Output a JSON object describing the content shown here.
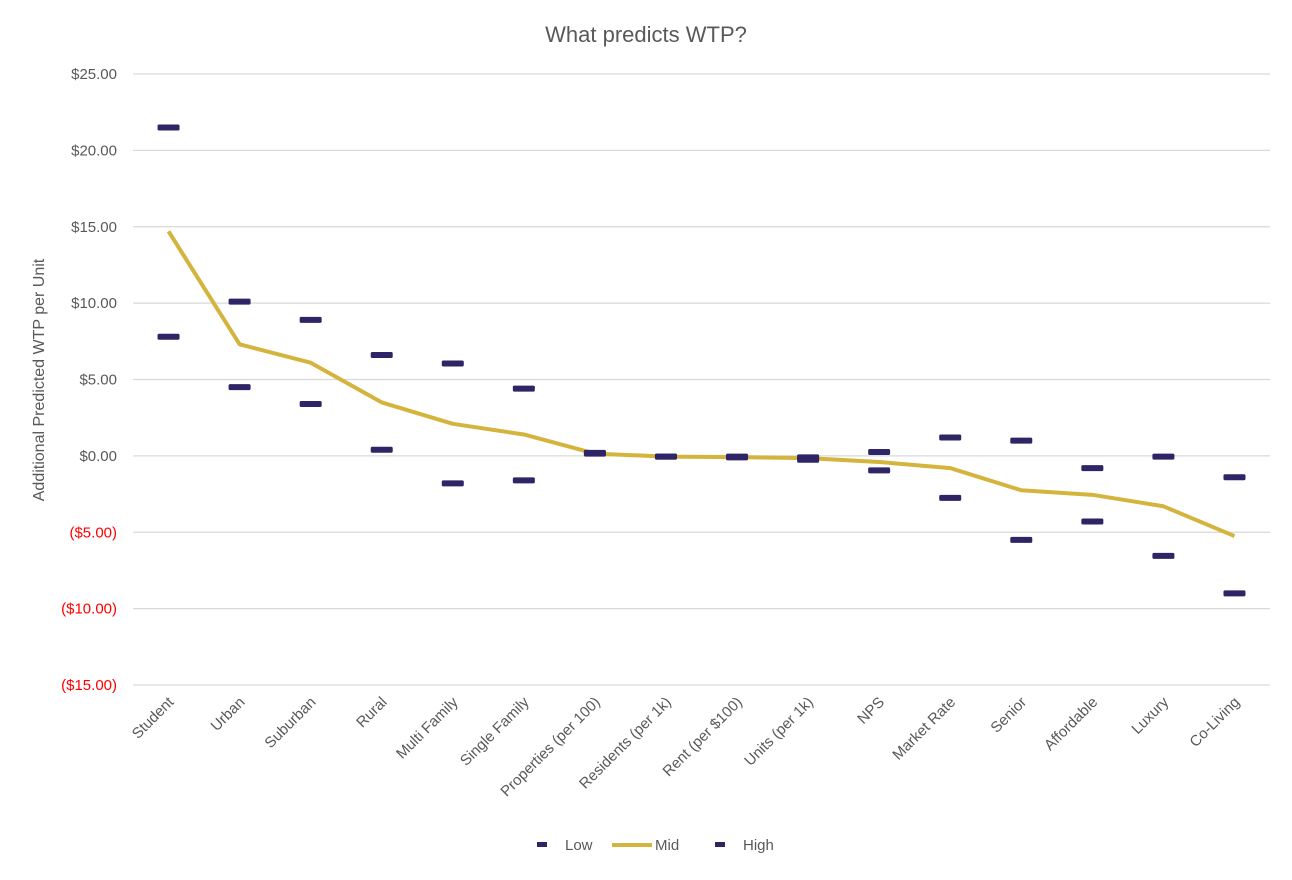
{
  "chart_data": {
    "type": "line",
    "title": "What predicts WTP?",
    "xlabel": "",
    "ylabel": "Additional Predicted WTP per Unit",
    "ylim": [
      -15,
      25
    ],
    "yticks": [
      25,
      20,
      15,
      10,
      5,
      0,
      -5,
      -10,
      -15
    ],
    "ytick_labels": [
      "$25.00",
      "$20.00",
      "$15.00",
      "$10.00",
      "$5.00",
      "$0.00",
      "($5.00)",
      "($10.00)",
      "($15.00)"
    ],
    "negative_label_color": "#ff0000",
    "grid": true,
    "legend_position": "bottom",
    "categories": [
      "Student",
      "Urban",
      "Suburban",
      "Rural",
      "Multi Family",
      "Single Family",
      "Properties (per 100)",
      "Residents (per 1k)",
      "Rent (per $100)",
      "Units (per 1k)",
      "NPS",
      "Market Rate",
      "Senior",
      "Affordable",
      "Luxury",
      "Co-Living"
    ],
    "series": [
      {
        "name": "Low",
        "style": "dash-marker",
        "color": "#2e2566",
        "values": [
          7.8,
          4.5,
          3.4,
          0.4,
          -1.8,
          -1.6,
          0.15,
          -0.05,
          -0.1,
          -0.25,
          -0.95,
          -2.75,
          -5.5,
          -4.3,
          -6.55,
          -9.0
        ]
      },
      {
        "name": "Mid",
        "style": "line",
        "color": "#d4b43c",
        "values": [
          14.7,
          7.3,
          6.1,
          3.5,
          2.1,
          1.4,
          0.15,
          -0.05,
          -0.08,
          -0.15,
          -0.4,
          -0.8,
          -2.25,
          -2.55,
          -3.3,
          -5.25
        ]
      },
      {
        "name": "High",
        "style": "dash-marker",
        "color": "#2e2566",
        "values": [
          21.5,
          10.1,
          8.9,
          6.6,
          6.05,
          4.4,
          0.2,
          -0.05,
          -0.05,
          -0.1,
          0.25,
          1.2,
          1.0,
          -0.8,
          -0.05,
          -1.4
        ]
      }
    ]
  }
}
